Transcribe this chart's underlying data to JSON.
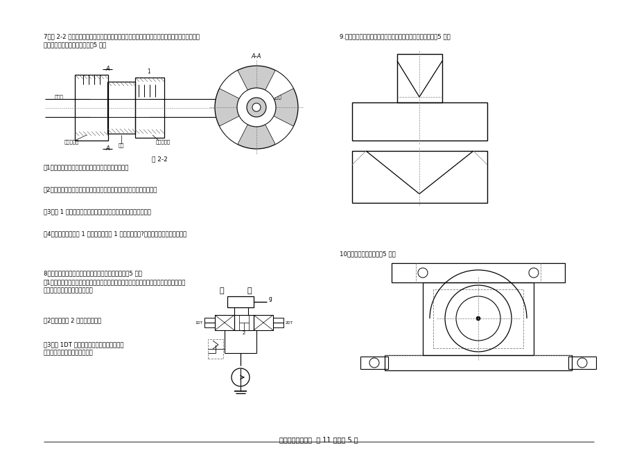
{
  "title_footer": "机电专业综合试题  共 11 页，第 5 页",
  "bg_color": "#ffffff",
  "text_color": "#000000",
  "q7_header": "7．图 2-2 为牙嵌式离合器，通过操纵系统拨动滑环，使右半离合器作轴向移动，实现离合器的",
  "q7_header2": "9.看懂图中主、俯视图，补画左视图，并画出正等轴测图。（5 分）",
  "q7_sub": "分离或接合。回答下列问题：（5 分）",
  "q7_q1": "（1）左半离合器与主动轴采用哪一种普通平键连接？",
  "q7_q2": "（2）右半离合器轴向移动距离较大，与从动轴采用了哪一种平键连接？",
  "q7_q3": "（3）件 1 与左半离合器的固定，采用了哪一种类型的螺纹连接？",
  "q7_q4": "（4）从动轴可以在件 1 内自由转动，件 1 的名称是什么?在离合器中的作用是什么？",
  "q8_header": "8．根据右图所示的液压基本回路，回答下列问题。（5 分）",
  "q8_q1": "（1）为保持系统压力的恒定和防止液压系统过载，在图中线框位置应接入什么液压元件？",
  "q8_q1b": "（在线框位置画出其图形符号）",
  "q8_q2": "（2）液压元件 2 的名称是什么？",
  "q8_q3": "（3）若 1DT 通电，活塞杆向什么方向移动？",
  "q8_q3b": "（请在图中括号内用箭头标出）",
  "q10_header": "10．补画全剖的左视图（5 分）",
  "fig22_label": "图 2-2"
}
